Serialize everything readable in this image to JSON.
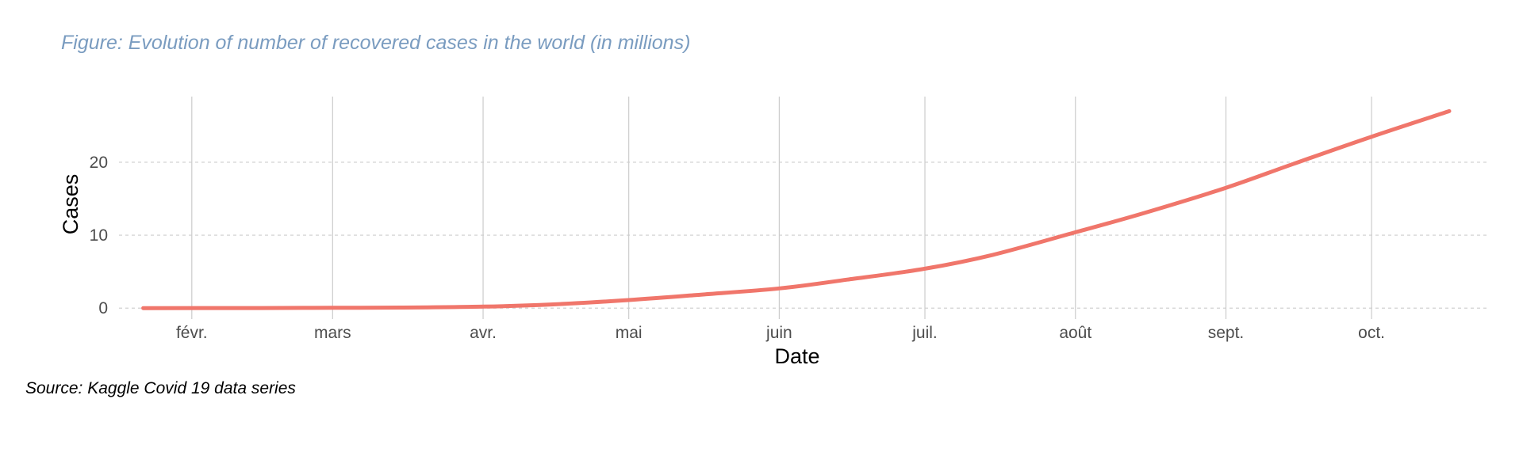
{
  "title": "Figure: Evolution of number of recovered cases in the world (in millions)",
  "caption": "Source: Kaggle Covid 19 data series",
  "colors": {
    "title": "#7a9cc0",
    "line": "#f0766b",
    "vgrid": "#cccccc",
    "hgrid": "#cccccc"
  },
  "chart_data": {
    "type": "line",
    "title": "Figure: Evolution of number of recovered cases in the world (in millions)",
    "xlabel": "Date",
    "ylabel": "Cases",
    "x_type": "date",
    "xlim": [
      "2020-01-17",
      "2020-10-25"
    ],
    "ylim": [
      -1.5,
      29
    ],
    "x_ticks": [
      {
        "date": "2020-02-01",
        "label": "févr."
      },
      {
        "date": "2020-03-01",
        "label": "mars"
      },
      {
        "date": "2020-04-01",
        "label": "avr."
      },
      {
        "date": "2020-05-01",
        "label": "mai"
      },
      {
        "date": "2020-06-01",
        "label": "juin"
      },
      {
        "date": "2020-07-01",
        "label": "juil."
      },
      {
        "date": "2020-08-01",
        "label": "août"
      },
      {
        "date": "2020-09-01",
        "label": "sept."
      },
      {
        "date": "2020-10-01",
        "label": "oct."
      }
    ],
    "y_ticks": [
      0,
      10,
      20
    ],
    "grid": {
      "vertical": "solid",
      "horizontal": "dashed"
    },
    "series": [
      {
        "x": [
          "2020-01-22",
          "2020-02-15",
          "2020-03-01",
          "2020-03-15",
          "2020-04-01",
          "2020-04-15",
          "2020-05-01",
          "2020-05-15",
          "2020-06-01",
          "2020-06-15",
          "2020-07-01",
          "2020-07-15",
          "2020-08-01",
          "2020-08-15",
          "2020-09-01",
          "2020-09-15",
          "2020-10-01",
          "2020-10-17"
        ],
        "values": [
          0.0,
          0.01,
          0.04,
          0.07,
          0.2,
          0.5,
          1.1,
          1.8,
          2.7,
          3.9,
          5.4,
          7.3,
          10.4,
          13.0,
          16.5,
          19.8,
          23.5,
          27.0
        ]
      }
    ]
  }
}
